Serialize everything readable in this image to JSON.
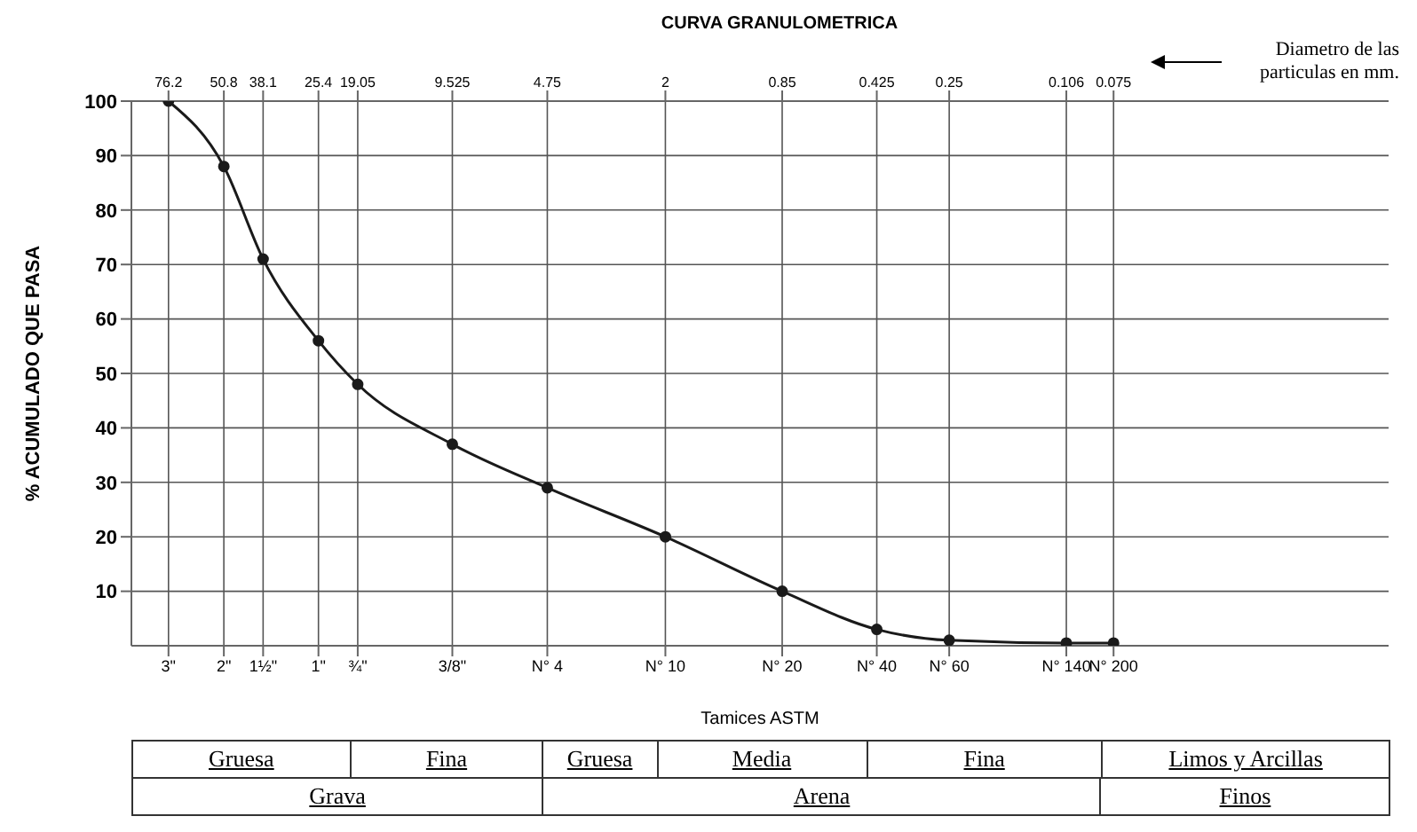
{
  "chart_data": {
    "type": "line",
    "title": "CURVA GRANULOMETRICA",
    "xlabel": "Tamices ASTM",
    "ylabel": "% ACUMULADO QUE PASA",
    "log": "x",
    "grid": true,
    "marker": "circle",
    "line_style": "solid",
    "xlim": [
      100,
      0.01
    ],
    "ylim": [
      0,
      100
    ],
    "xticks": [
      76.2,
      50.8,
      38.1,
      25.4,
      19.05,
      9.525,
      4.75,
      2,
      0.85,
      0.425,
      0.25,
      0.106,
      0.075
    ],
    "yticks": [
      10,
      20,
      30,
      40,
      50,
      60,
      70,
      80,
      90,
      100
    ],
    "x": [
      76.2,
      50.8,
      38.1,
      25.4,
      19.05,
      9.525,
      4.75,
      2,
      0.85,
      0.425,
      0.25,
      0.106,
      0.075
    ],
    "series": [
      {
        "color": "#1a1a1a",
        "values": [
          100,
          88,
          71,
          56,
          48,
          37,
          29,
          20,
          10,
          3,
          1,
          0.5,
          0.5
        ]
      }
    ],
    "annotations": [
      "Diametro de las particulas en mm.",
      "3\"",
      "2\"",
      "1½\"",
      "1\"",
      "¾\"",
      "3/8\"",
      "N° 4",
      "N° 10",
      "N° 20",
      "N° 40",
      "N° 60",
      "N° 140",
      "N° 200",
      "Gruesa",
      "Fina",
      "Gruesa",
      "Media",
      "Fina",
      "Limos y Arcillas",
      "Grava",
      "Arena",
      "Finos"
    ]
  }
}
